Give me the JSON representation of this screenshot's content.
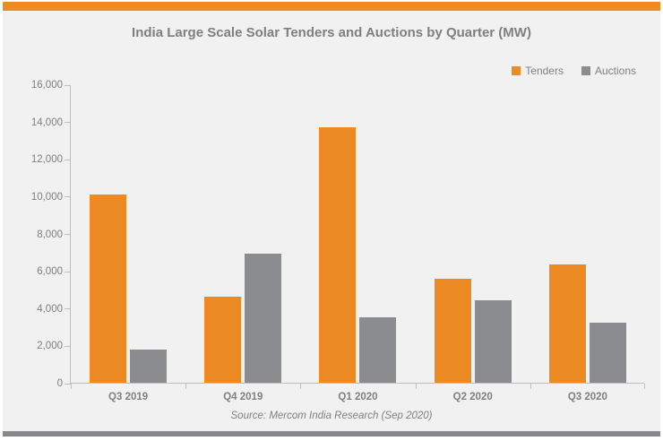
{
  "card": {
    "background": "#F1F1F2",
    "top_accent_color": "#EC8B23",
    "bottom_accent_color": "#85878A"
  },
  "colors": {
    "text": "#7F7F7F",
    "axis_line": "#BFBFBF"
  },
  "chart_data": {
    "type": "bar",
    "title": "India Large Scale Solar Tenders and Auctions by Quarter (MW)",
    "source": "Source: Mercom India Research (Sep 2020)",
    "categories": [
      "Q3 2019",
      "Q4 2019",
      "Q1 2020",
      "Q2 2020",
      "Q3 2020"
    ],
    "series": [
      {
        "name": "Tenders",
        "color": "#EC8B23",
        "values": [
          10100,
          4600,
          13700,
          5600,
          6350
        ]
      },
      {
        "name": "Auctions",
        "color": "#8A8C8F",
        "values": [
          1800,
          6900,
          3500,
          4400,
          3200
        ]
      }
    ],
    "xlabel": "",
    "ylabel": "",
    "ylim": [
      0,
      16000
    ],
    "y_tick_step": 2000,
    "y_tick_labels": [
      "16,000",
      "14,000",
      "12,000",
      "10,000",
      "8,000",
      "6,000",
      "4,000",
      "2,000",
      "0"
    ],
    "grid": false,
    "legend_position": "top-right"
  }
}
